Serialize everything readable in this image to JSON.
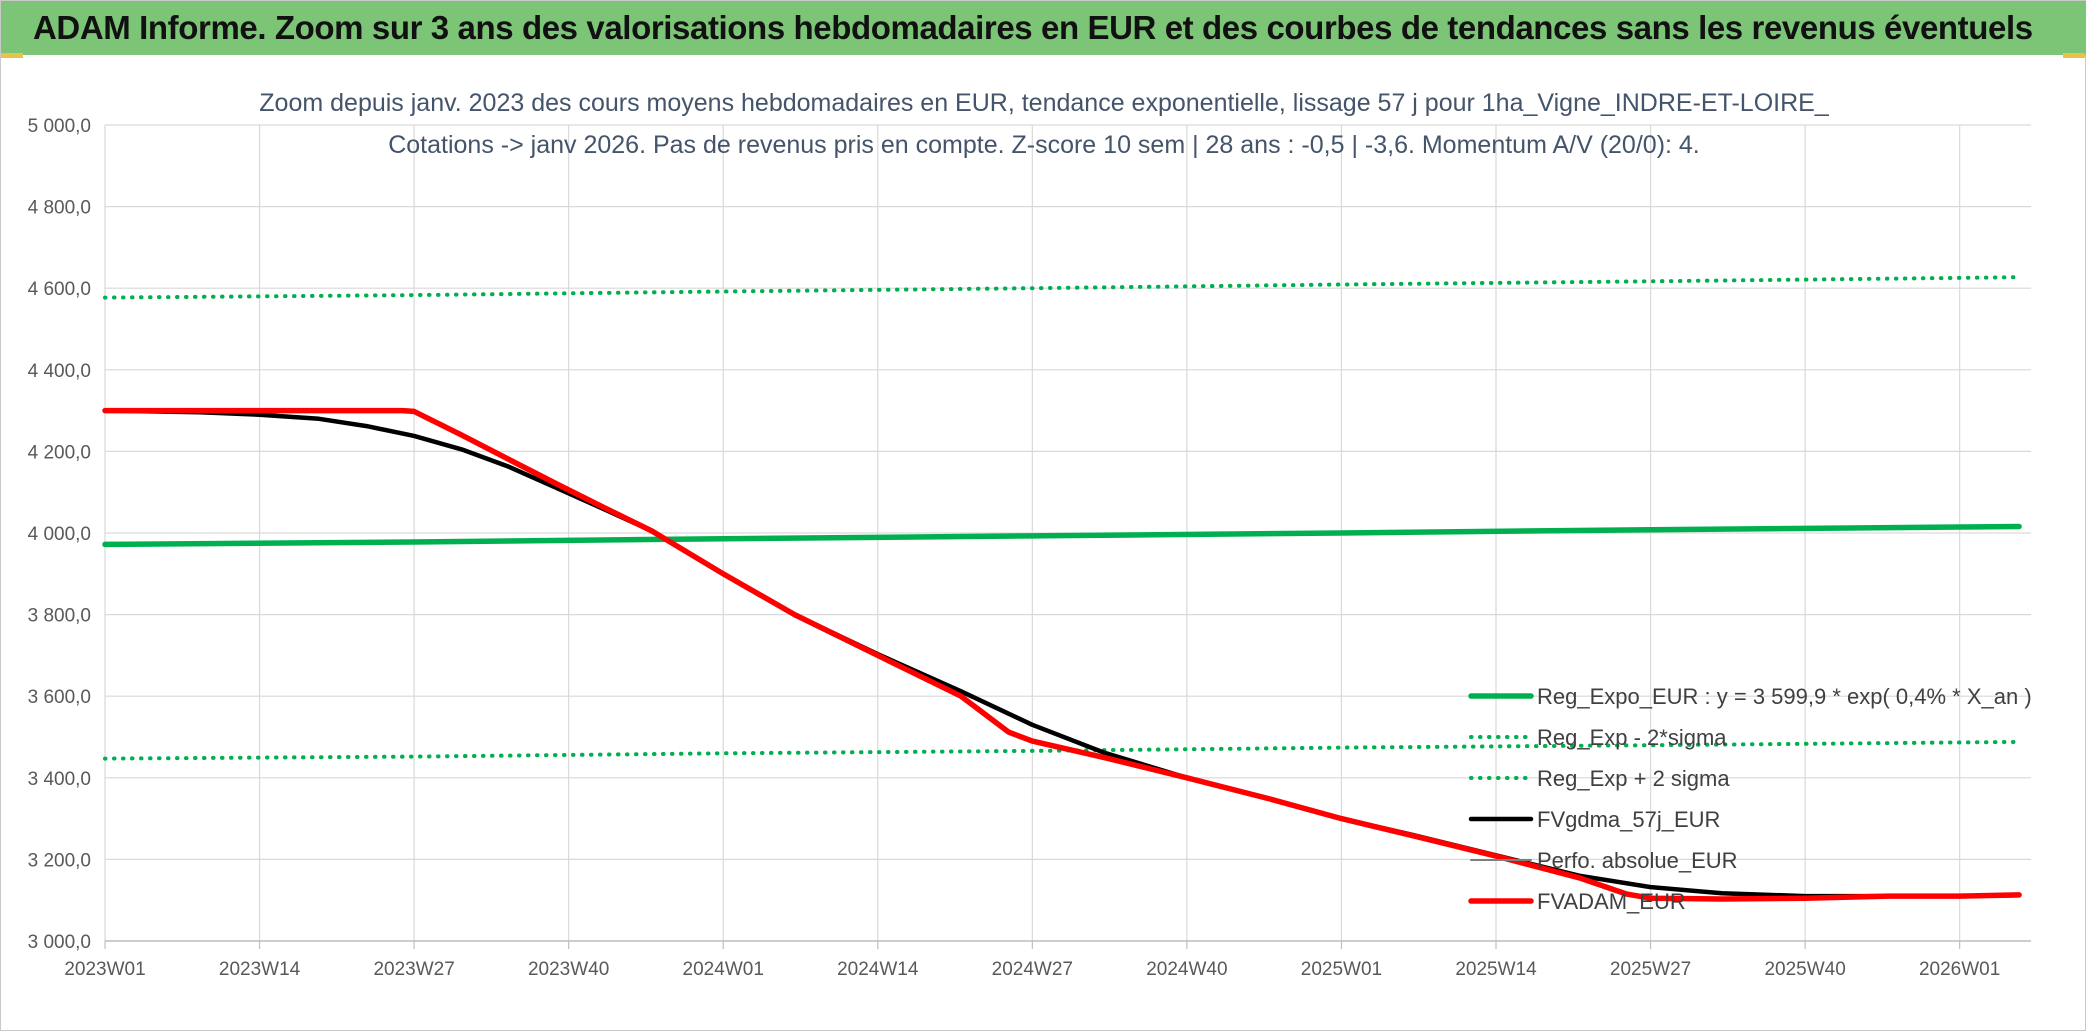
{
  "banner": {
    "title": "ADAM Informe. Zoom sur 3 ans des valorisations hebdomadaires en EUR et des courbes de tendances sans les revenus éventuels",
    "color": "#7cc576"
  },
  "chart_data": {
    "type": "line",
    "title": "Zoom depuis janv. 2023 des cours moyens hebdomadaires en EUR, tendance exponentielle, lissage 57 j pour 1ha_Vigne_INDRE-ET-LOIRE_",
    "subtitle": "Cotations -> janv 2026. Pas de revenus pris en compte. Z-score 10 sem | 28 ans : -0,5 | -3,6. Momentum A/V (20/0): 4.",
    "xlabel": "",
    "ylabel": "",
    "ylim": [
      3000,
      5000
    ],
    "xlim": [
      0,
      162
    ],
    "grid": true,
    "legend_position": "bottom-right",
    "x_ticks": [
      {
        "x": 0,
        "label": "2023W01"
      },
      {
        "x": 13,
        "label": "2023W14"
      },
      {
        "x": 26,
        "label": "2023W27"
      },
      {
        "x": 39,
        "label": "2023W40"
      },
      {
        "x": 52,
        "label": "2024W01"
      },
      {
        "x": 65,
        "label": "2024W14"
      },
      {
        "x": 78,
        "label": "2024W27"
      },
      {
        "x": 91,
        "label": "2024W40"
      },
      {
        "x": 104,
        "label": "2025W01"
      },
      {
        "x": 117,
        "label": "2025W14"
      },
      {
        "x": 130,
        "label": "2025W27"
      },
      {
        "x": 143,
        "label": "2025W40"
      },
      {
        "x": 156,
        "label": "2026W01"
      }
    ],
    "y_ticks": [
      {
        "value": 5000,
        "label": "5 000,0"
      },
      {
        "value": 4800,
        "label": "4 800,0"
      },
      {
        "value": 4600,
        "label": "4 600,0"
      },
      {
        "value": 4400,
        "label": "4 400,0"
      },
      {
        "value": 4200,
        "label": "4 200,0"
      },
      {
        "value": 4000,
        "label": "4 000,0"
      },
      {
        "value": 3800,
        "label": "3 800,0"
      },
      {
        "value": 3600,
        "label": "3 600,0"
      },
      {
        "value": 3400,
        "label": "3 400,0"
      },
      {
        "value": 3200,
        "label": "3 200,0"
      },
      {
        "value": 3000,
        "label": "3 000,0"
      }
    ],
    "series": [
      {
        "name": "Reg_Expo_EUR : y = 3 599,9 * exp( 0,4% *  X_an )",
        "color": "#00b050",
        "style": "solid",
        "width": 5.5,
        "points": [
          [
            0,
            3972
          ],
          [
            26,
            3978
          ],
          [
            52,
            3986
          ],
          [
            78,
            3993
          ],
          [
            104,
            4000
          ],
          [
            130,
            4008
          ],
          [
            161,
            4016
          ]
        ]
      },
      {
        "name": "Reg_Exp - 2*sigma",
        "color": "#00b050",
        "style": "dotted",
        "width": 4,
        "points": [
          [
            0,
            3447
          ],
          [
            26,
            3452
          ],
          [
            52,
            3460
          ],
          [
            78,
            3466
          ],
          [
            104,
            3474
          ],
          [
            130,
            3480
          ],
          [
            161,
            3488
          ]
        ]
      },
      {
        "name": "Reg_Exp + 2 sigma",
        "color": "#00b050",
        "style": "dotted",
        "width": 4,
        "points": [
          [
            0,
            4577
          ],
          [
            26,
            4583
          ],
          [
            52,
            4592
          ],
          [
            78,
            4600
          ],
          [
            104,
            4609
          ],
          [
            130,
            4617
          ],
          [
            161,
            4627
          ]
        ]
      },
      {
        "name": "FVgdma_57j_EUR",
        "color": "#000000",
        "style": "solid",
        "width": 4.5,
        "points": [
          [
            0,
            4300
          ],
          [
            8,
            4296
          ],
          [
            13,
            4290
          ],
          [
            18,
            4280
          ],
          [
            22,
            4262
          ],
          [
            26,
            4238
          ],
          [
            30,
            4205
          ],
          [
            34,
            4162
          ],
          [
            38,
            4110
          ],
          [
            42,
            4058
          ],
          [
            46,
            4005
          ],
          [
            52,
            3900
          ],
          [
            58,
            3800
          ],
          [
            65,
            3703
          ],
          [
            72,
            3612
          ],
          [
            78,
            3530
          ],
          [
            84,
            3462
          ],
          [
            91,
            3400
          ],
          [
            98,
            3348
          ],
          [
            104,
            3300
          ],
          [
            110,
            3260
          ],
          [
            117,
            3210
          ],
          [
            124,
            3160
          ],
          [
            130,
            3132
          ],
          [
            136,
            3117
          ],
          [
            143,
            3110
          ],
          [
            150,
            3110
          ],
          [
            156,
            3110
          ],
          [
            161,
            3112
          ]
        ]
      },
      {
        "name": "Perfo. absolue_EUR",
        "color": "#7f7f7f",
        "style": "solid",
        "width": 2,
        "points": []
      },
      {
        "name": "FVADAM_EUR",
        "color": "#ff0000",
        "style": "solid",
        "width": 5.5,
        "points": [
          [
            0,
            4300
          ],
          [
            13,
            4300
          ],
          [
            25,
            4300
          ],
          [
            26,
            4298
          ],
          [
            30,
            4240
          ],
          [
            34,
            4180
          ],
          [
            38,
            4120
          ],
          [
            42,
            4062
          ],
          [
            46,
            4005
          ],
          [
            52,
            3900
          ],
          [
            58,
            3800
          ],
          [
            65,
            3700
          ],
          [
            72,
            3600
          ],
          [
            76,
            3512
          ],
          [
            78,
            3490
          ],
          [
            84,
            3450
          ],
          [
            91,
            3400
          ],
          [
            98,
            3348
          ],
          [
            104,
            3300
          ],
          [
            110,
            3258
          ],
          [
            117,
            3208
          ],
          [
            124,
            3155
          ],
          [
            128,
            3115
          ],
          [
            130,
            3105
          ],
          [
            136,
            3103
          ],
          [
            143,
            3105
          ],
          [
            150,
            3110
          ],
          [
            156,
            3110
          ],
          [
            161,
            3113
          ]
        ]
      }
    ]
  }
}
